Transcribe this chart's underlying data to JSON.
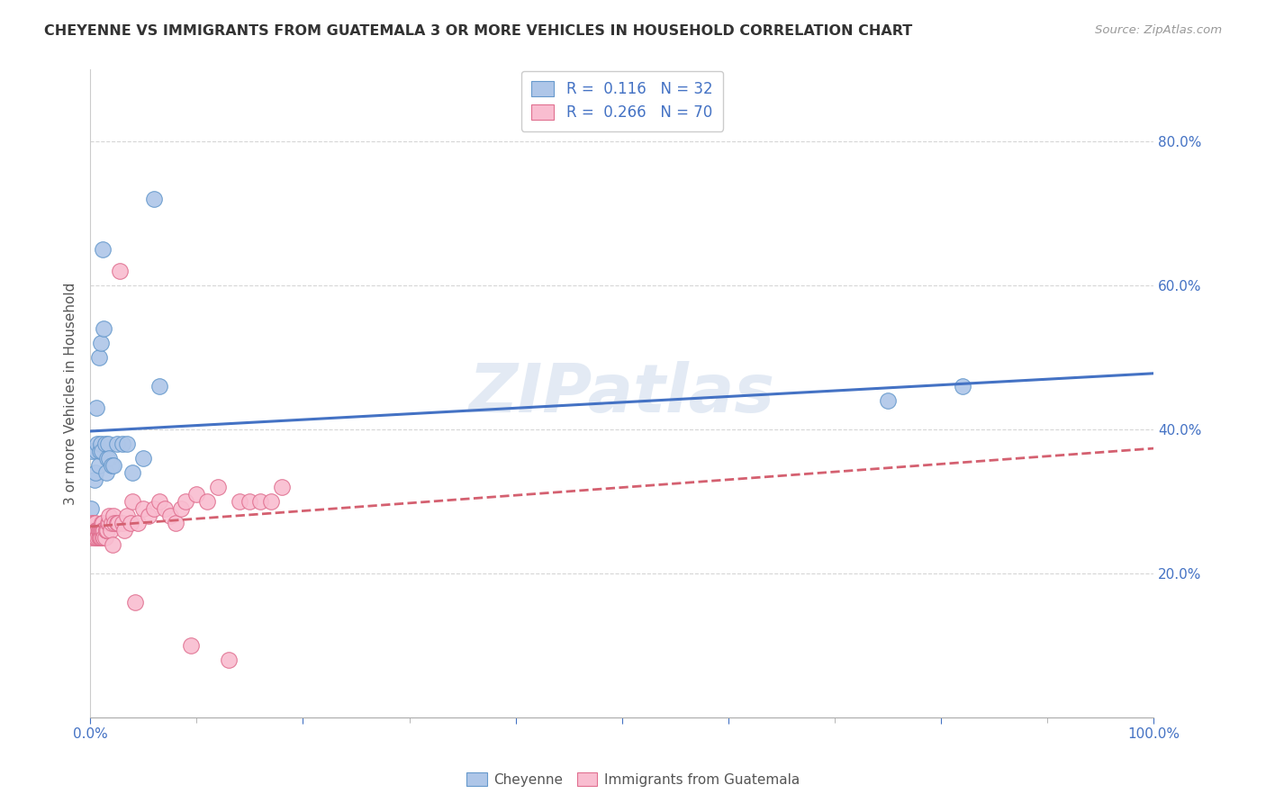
{
  "title": "CHEYENNE VS IMMIGRANTS FROM GUATEMALA 3 OR MORE VEHICLES IN HOUSEHOLD CORRELATION CHART",
  "source": "Source: ZipAtlas.com",
  "ylabel": "3 or more Vehicles in Household",
  "right_yticks": [
    "20.0%",
    "40.0%",
    "60.0%",
    "80.0%"
  ],
  "right_ytick_vals": [
    0.2,
    0.4,
    0.6,
    0.8
  ],
  "cheyenne_color": "#aec6e8",
  "cheyenne_edge": "#6699cc",
  "guatemala_color": "#f9bdd0",
  "guatemala_edge": "#e07090",
  "cheyenne_line_color": "#4472c4",
  "guatemala_line_color": "#d46070",
  "watermark": "ZIPatlas",
  "xlim": [
    0.0,
    1.0
  ],
  "ylim": [
    0.0,
    0.9
  ],
  "cheyenne_x": [
    0.001,
    0.002,
    0.003,
    0.004,
    0.005,
    0.006,
    0.006,
    0.007,
    0.008,
    0.008,
    0.009,
    0.01,
    0.01,
    0.011,
    0.012,
    0.013,
    0.014,
    0.015,
    0.016,
    0.017,
    0.018,
    0.02,
    0.022,
    0.025,
    0.03,
    0.035,
    0.04,
    0.05,
    0.06,
    0.065,
    0.75,
    0.82
  ],
  "cheyenne_y": [
    0.29,
    0.37,
    0.26,
    0.33,
    0.34,
    0.37,
    0.43,
    0.38,
    0.35,
    0.5,
    0.37,
    0.38,
    0.52,
    0.37,
    0.65,
    0.54,
    0.38,
    0.34,
    0.36,
    0.38,
    0.36,
    0.35,
    0.35,
    0.38,
    0.38,
    0.38,
    0.34,
    0.36,
    0.72,
    0.46,
    0.44,
    0.46
  ],
  "guatemala_x": [
    0.001,
    0.002,
    0.002,
    0.003,
    0.003,
    0.004,
    0.004,
    0.005,
    0.005,
    0.006,
    0.006,
    0.007,
    0.007,
    0.007,
    0.008,
    0.008,
    0.008,
    0.009,
    0.009,
    0.01,
    0.01,
    0.01,
    0.011,
    0.011,
    0.012,
    0.012,
    0.012,
    0.013,
    0.013,
    0.014,
    0.015,
    0.015,
    0.016,
    0.017,
    0.018,
    0.018,
    0.019,
    0.02,
    0.021,
    0.022,
    0.023,
    0.025,
    0.026,
    0.028,
    0.03,
    0.032,
    0.035,
    0.038,
    0.04,
    0.042,
    0.045,
    0.05,
    0.055,
    0.06,
    0.065,
    0.07,
    0.075,
    0.08,
    0.085,
    0.09,
    0.095,
    0.1,
    0.11,
    0.12,
    0.13,
    0.14,
    0.15,
    0.16,
    0.17,
    0.18
  ],
  "guatemala_y": [
    0.25,
    0.27,
    0.26,
    0.27,
    0.26,
    0.26,
    0.25,
    0.27,
    0.25,
    0.26,
    0.26,
    0.26,
    0.26,
    0.25,
    0.26,
    0.25,
    0.26,
    0.26,
    0.25,
    0.25,
    0.26,
    0.25,
    0.27,
    0.26,
    0.25,
    0.27,
    0.26,
    0.26,
    0.25,
    0.25,
    0.26,
    0.26,
    0.26,
    0.27,
    0.27,
    0.28,
    0.26,
    0.27,
    0.24,
    0.28,
    0.27,
    0.27,
    0.27,
    0.62,
    0.27,
    0.26,
    0.28,
    0.27,
    0.3,
    0.16,
    0.27,
    0.29,
    0.28,
    0.29,
    0.3,
    0.29,
    0.28,
    0.27,
    0.29,
    0.3,
    0.1,
    0.31,
    0.3,
    0.32,
    0.08,
    0.3,
    0.3,
    0.3,
    0.3,
    0.32
  ]
}
